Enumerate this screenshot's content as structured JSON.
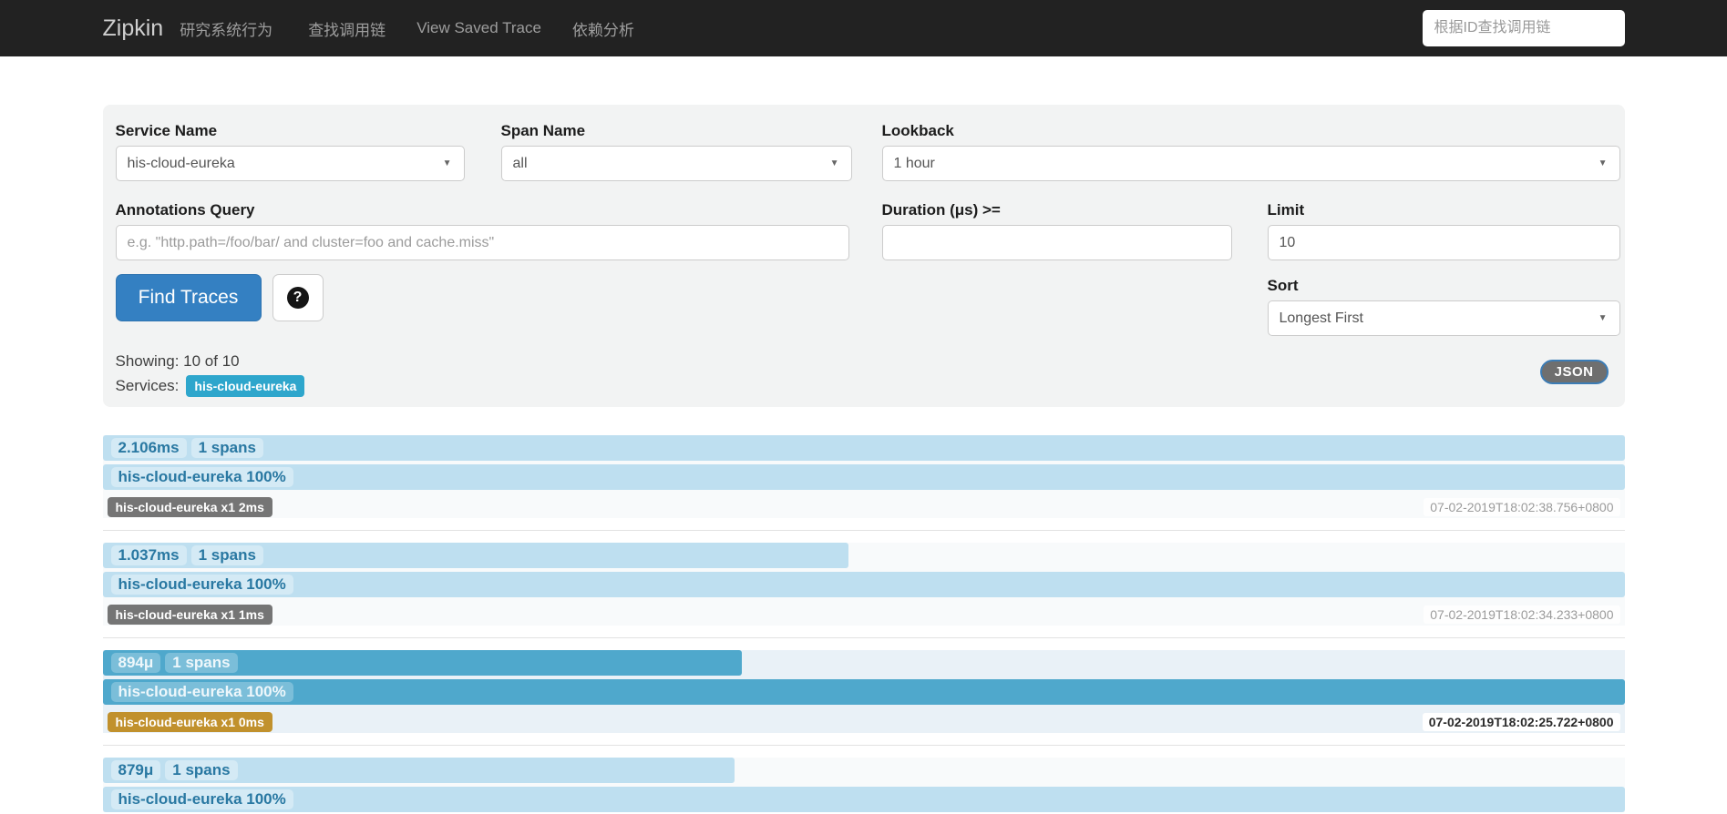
{
  "navbar": {
    "brand": "Zipkin",
    "brand_sub": "研究系统行为",
    "links": [
      "查找调用链",
      "View Saved Trace",
      "依赖分析"
    ],
    "search_placeholder": "根据ID查找调用链"
  },
  "form": {
    "service_name": {
      "label": "Service Name",
      "value": "his-cloud-eureka"
    },
    "span_name": {
      "label": "Span Name",
      "value": "all"
    },
    "lookback": {
      "label": "Lookback",
      "value": "1 hour"
    },
    "annotations": {
      "label": "Annotations Query",
      "placeholder": "e.g. \"http.path=/foo/bar/ and cluster=foo and cache.miss\""
    },
    "duration": {
      "label": "Duration (μs) >=",
      "value": ""
    },
    "limit": {
      "label": "Limit",
      "value": "10"
    },
    "sort": {
      "label": "Sort",
      "value": "Longest First"
    },
    "find_button": "Find Traces",
    "help_icon": "?",
    "showing": "Showing: 10 of 10",
    "services_label": "Services:",
    "services_badge": "his-cloud-eureka",
    "json_button": "JSON"
  },
  "traces": [
    {
      "duration": "2.106ms",
      "spans": "1 spans",
      "width_pct": 100,
      "service": "his-cloud-eureka 100%",
      "badge": "his-cloud-eureka x1 2ms",
      "badge_color": "gray",
      "timestamp": "07-02-2019T18:02:38.756+0800",
      "highlighted": false
    },
    {
      "duration": "1.037ms",
      "spans": "1 spans",
      "width_pct": 49,
      "service": "his-cloud-eureka 100%",
      "badge": "his-cloud-eureka x1 1ms",
      "badge_color": "gray",
      "timestamp": "07-02-2019T18:02:34.233+0800",
      "highlighted": false
    },
    {
      "duration": "894μ",
      "spans": "1 spans",
      "width_pct": 42,
      "service": "his-cloud-eureka 100%",
      "badge": "his-cloud-eureka x1 0ms",
      "badge_color": "orange",
      "timestamp": "07-02-2019T18:02:25.722+0800",
      "highlighted": true
    },
    {
      "duration": "879μ",
      "spans": "1 spans",
      "width_pct": 41.5,
      "service": "his-cloud-eureka 100%",
      "badge": null,
      "badge_color": null,
      "timestamp": null,
      "highlighted": false
    }
  ],
  "colors": {
    "navbar_bg": "#222222",
    "primary_button": "#3480c2",
    "bar_light": "#bedff0",
    "bar_highlight": "#4fa8cc",
    "bar_text": "#2978a2",
    "badge_gray": "#757575",
    "badge_orange": "#c1912d",
    "services_badge": "#2ea6cc",
    "panel_bg": "#f2f3f3"
  }
}
